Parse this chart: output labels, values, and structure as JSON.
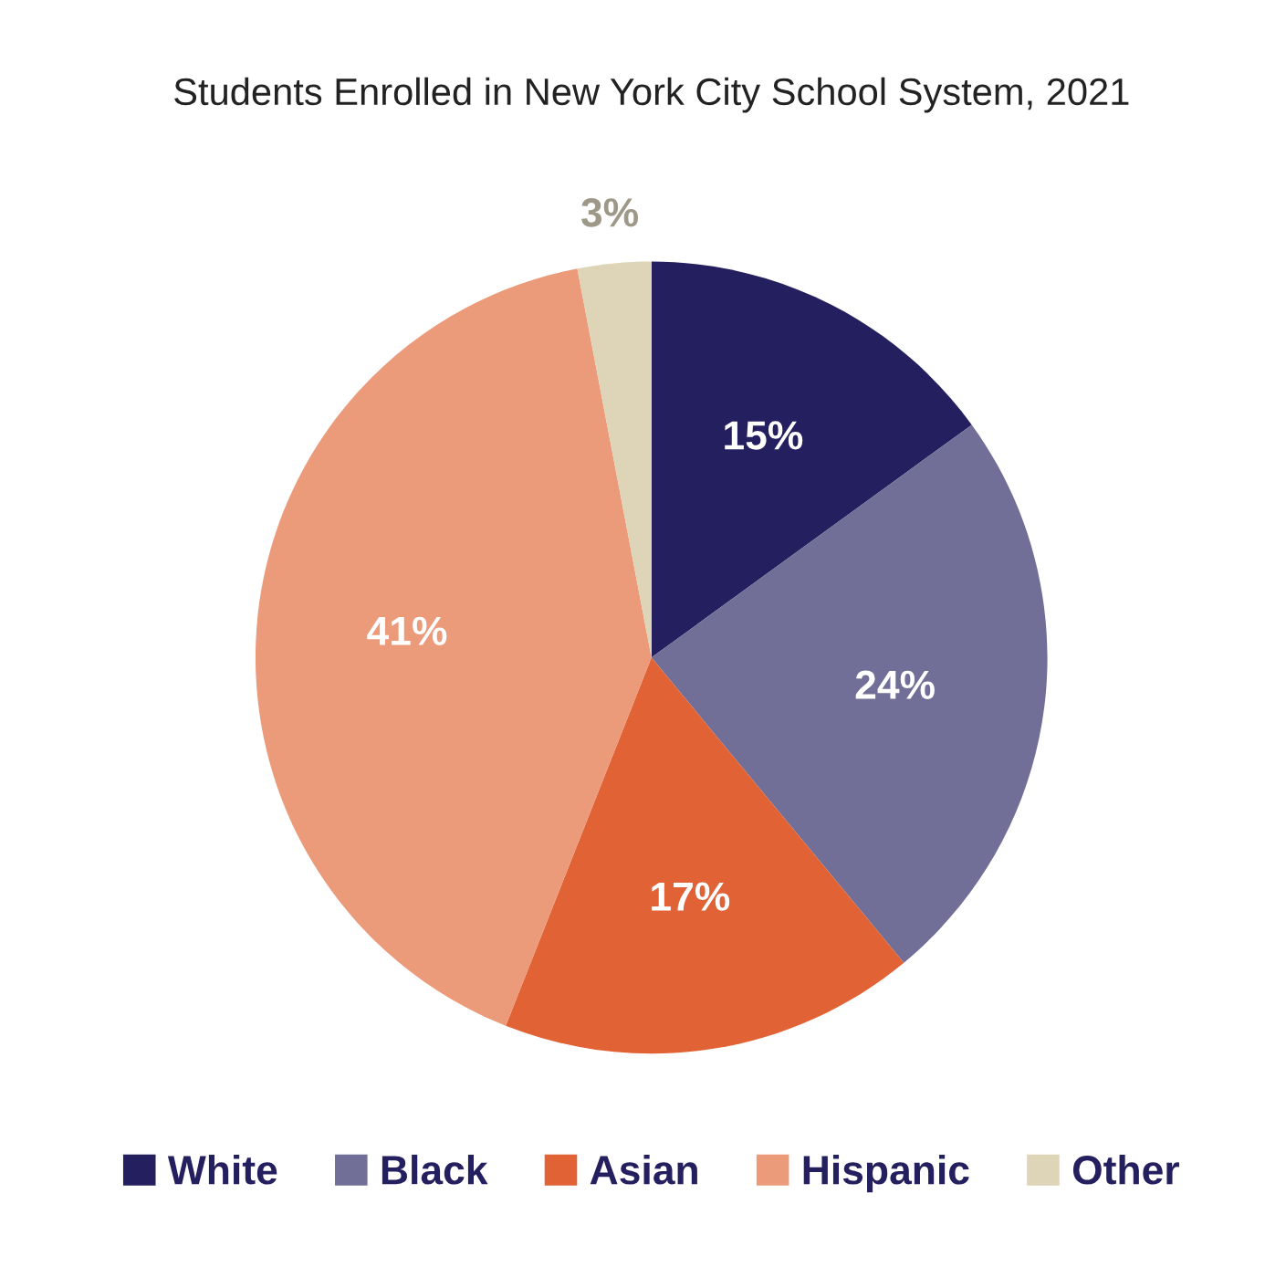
{
  "chart_data": {
    "type": "pie",
    "title": "Students Enrolled in New York City School System, 2021",
    "categories": [
      "White",
      "Black",
      "Asian",
      "Hispanic",
      "Other"
    ],
    "values": [
      15,
      24,
      17,
      41,
      3
    ],
    "value_labels": [
      "15%",
      "24%",
      "17%",
      "41%",
      "3%"
    ],
    "colors": [
      "#241f5e",
      "#716f98",
      "#e06235",
      "#eb9a7a",
      "#ded5b8"
    ],
    "legend": "bottom"
  }
}
